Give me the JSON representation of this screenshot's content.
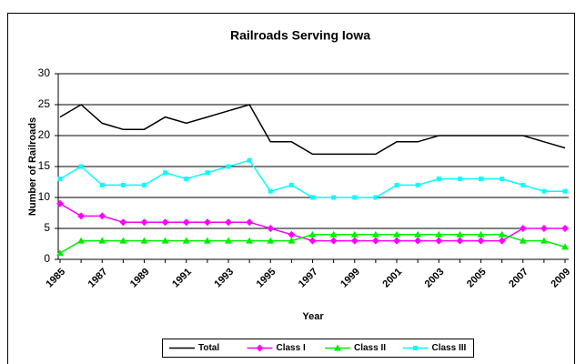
{
  "chart_data": {
    "type": "line",
    "title": "Railroads Serving Iowa",
    "x_label": "Year",
    "y_label": "Number of Railroads",
    "categories": [
      "1985",
      null,
      "1987",
      null,
      "1989",
      null,
      "1991",
      null,
      "1993",
      null,
      "1995",
      null,
      "1997",
      null,
      "1999",
      null,
      "2001",
      null,
      "2003",
      null,
      "2005",
      null,
      "2007",
      null,
      "2009"
    ],
    "series": [
      {
        "name": "Total",
        "color": "#000000",
        "marker": "none",
        "values": [
          23,
          25,
          22,
          21,
          21,
          23,
          22,
          23,
          24,
          25,
          19,
          19,
          17,
          17,
          17,
          17,
          19,
          19,
          20,
          20,
          20,
          20,
          20,
          19,
          18
        ]
      },
      {
        "name": "Class I",
        "color": "#ff00ff",
        "marker": "diamond",
        "values": [
          9,
          7,
          7,
          6,
          6,
          6,
          6,
          6,
          6,
          6,
          5,
          4,
          3,
          3,
          3,
          3,
          3,
          3,
          3,
          3,
          3,
          3,
          5,
          5,
          5
        ]
      },
      {
        "name": "Class II",
        "color": "#00ee00",
        "marker": "triangle",
        "values": [
          1,
          3,
          3,
          3,
          3,
          3,
          3,
          3,
          3,
          3,
          3,
          3,
          4,
          4,
          4,
          4,
          4,
          4,
          4,
          4,
          4,
          4,
          3,
          3,
          2
        ]
      },
      {
        "name": "Class III",
        "color": "#00ffff",
        "marker": "square",
        "values": [
          13,
          15,
          12,
          12,
          12,
          14,
          13,
          14,
          15,
          16,
          11,
          12,
          10,
          10,
          10,
          10,
          12,
          12,
          13,
          13,
          13,
          13,
          12,
          11,
          11
        ]
      }
    ],
    "ylim": [
      0,
      30
    ],
    "yticks": [
      0,
      5,
      10,
      15,
      20,
      25,
      30
    ],
    "grid": true,
    "legend": "bottom"
  }
}
